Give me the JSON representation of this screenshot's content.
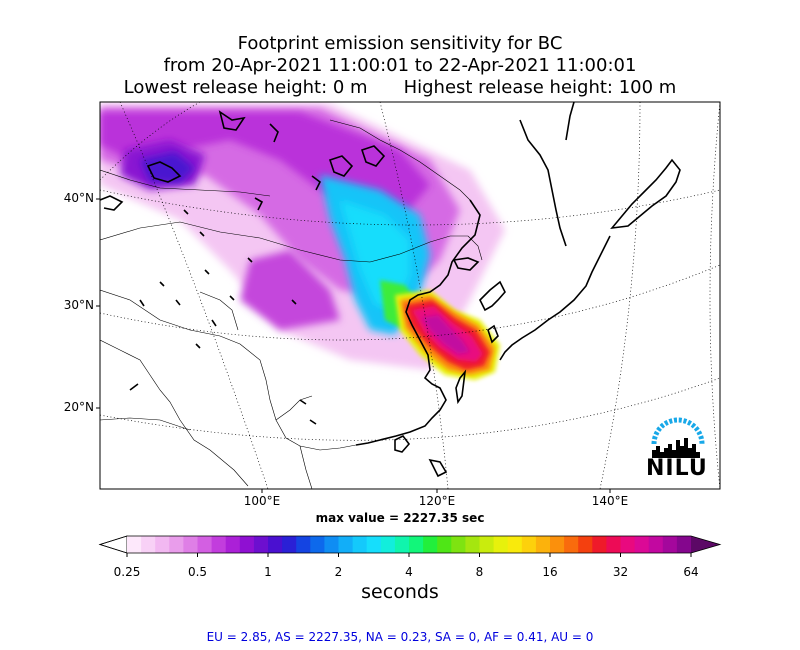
{
  "title": {
    "line1": "Footprint emission sensitivity for BC",
    "line2": "from 20-Apr-2021 11:00:01 to 22-Apr-2021 11:00:01",
    "lowest": "Lowest release height: 0 m",
    "highest": "Highest release height: 100 m"
  },
  "map": {
    "lat_labels": [
      "40°N",
      "30°N",
      "20°N"
    ],
    "lon_labels": [
      "100°E",
      "120°E",
      "140°E"
    ],
    "logo_text": "NILU"
  },
  "max_value": "max value = 2227.35 sec",
  "colorbar": {
    "ticks": [
      "0.25",
      "0.5",
      "1",
      "2",
      "4",
      "8",
      "16",
      "32",
      "64"
    ],
    "colors": [
      "#fde8fb",
      "#f8d1f6",
      "#f2b8f1",
      "#e99deb",
      "#df7fe6",
      "#d35fe2",
      "#c23ddd",
      "#ab20d7",
      "#8f10d2",
      "#6d0fcf",
      "#4a10d0",
      "#2a20d6",
      "#1444e2",
      "#0d69ec",
      "#0f8df3",
      "#12aef8",
      "#14c9fb",
      "#16defc",
      "#12eedc",
      "#10f5ad",
      "#12f67a",
      "#22ef3c",
      "#4fe616",
      "#7ee311",
      "#a5e60f",
      "#c9ec0d",
      "#e7f10c",
      "#f9ea0c",
      "#fdd10c",
      "#fcb20c",
      "#fb900c",
      "#f96b0d",
      "#f4400f",
      "#ef1a2a",
      "#ed0b56",
      "#e9097f",
      "#db0996",
      "#c208a0",
      "#a4079c",
      "#84068d"
    ],
    "under_color": "#ffffff",
    "over_color": "#5c0866",
    "unit": "seconds"
  },
  "regions": "EU = 2.85,  AS = 2227.35,  NA = 0.23,  SA = 0,  AF = 0.41,  AU = 0"
}
